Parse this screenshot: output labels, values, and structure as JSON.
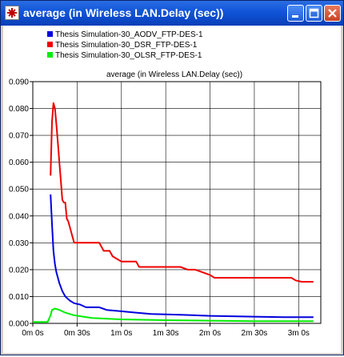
{
  "window": {
    "title": "average (in Wireless LAN.Delay (sec))",
    "icons": [
      "app-icon",
      "minimize-icon",
      "maximize-icon",
      "close-icon"
    ]
  },
  "chart_data": {
    "type": "line",
    "title": "average (in Wireless LAN.Delay (sec))",
    "xlabel": "",
    "ylabel": "",
    "x_unit": "seconds",
    "xlim": [
      0,
      195
    ],
    "ylim": [
      0,
      0.09
    ],
    "grid": true,
    "legend_position": "top-left",
    "x_ticks": [
      0,
      30,
      60,
      90,
      120,
      150,
      180
    ],
    "x_tick_labels": [
      "0m 0s",
      "0m 30s",
      "1m 0s",
      "1m 30s",
      "2m 0s",
      "2m 30s",
      "3m 0s"
    ],
    "y_ticks": [
      0,
      0.01,
      0.02,
      0.03,
      0.04,
      0.05,
      0.06,
      0.07,
      0.08,
      0.09
    ],
    "y_tick_labels": [
      "0.000",
      "0.010",
      "0.020",
      "0.030",
      "0.040",
      "0.050",
      "0.060",
      "0.070",
      "0.080",
      "0.090"
    ],
    "series": [
      {
        "name": "Thesis Simulation-30_AODV_FTP-DES-1",
        "color": "#0000dd",
        "points": [
          [
            12,
            0.048
          ],
          [
            13,
            0.037
          ],
          [
            14,
            0.027
          ],
          [
            15,
            0.022
          ],
          [
            16,
            0.019
          ],
          [
            18,
            0.015
          ],
          [
            20,
            0.012
          ],
          [
            22,
            0.01
          ],
          [
            25,
            0.0085
          ],
          [
            28,
            0.0075
          ],
          [
            32,
            0.007
          ],
          [
            36,
            0.006
          ],
          [
            45,
            0.006
          ],
          [
            50,
            0.005
          ],
          [
            60,
            0.0045
          ],
          [
            70,
            0.004
          ],
          [
            80,
            0.0035
          ],
          [
            100,
            0.0032
          ],
          [
            110,
            0.003
          ],
          [
            120,
            0.0028
          ],
          [
            150,
            0.0025
          ],
          [
            170,
            0.0023
          ],
          [
            190,
            0.0023
          ]
        ]
      },
      {
        "name": "Thesis Simulation-30_DSR_FTP-DES-1",
        "color": "#ee0000",
        "points": [
          [
            12,
            0.055
          ],
          [
            13,
            0.075
          ],
          [
            14,
            0.082
          ],
          [
            15,
            0.08
          ],
          [
            16,
            0.074
          ],
          [
            17,
            0.067
          ],
          [
            18,
            0.06
          ],
          [
            19,
            0.053
          ],
          [
            20,
            0.046
          ],
          [
            21,
            0.045
          ],
          [
            22,
            0.045
          ],
          [
            23,
            0.039
          ],
          [
            24,
            0.038
          ],
          [
            26,
            0.034
          ],
          [
            28,
            0.03
          ],
          [
            45,
            0.03
          ],
          [
            48,
            0.027
          ],
          [
            52,
            0.027
          ],
          [
            54,
            0.025
          ],
          [
            57,
            0.024
          ],
          [
            60,
            0.023
          ],
          [
            70,
            0.023
          ],
          [
            72,
            0.021
          ],
          [
            100,
            0.021
          ],
          [
            105,
            0.02
          ],
          [
            110,
            0.02
          ],
          [
            115,
            0.019
          ],
          [
            120,
            0.018
          ],
          [
            123,
            0.017
          ],
          [
            175,
            0.017
          ],
          [
            178,
            0.016
          ],
          [
            182,
            0.0155
          ],
          [
            190,
            0.0155
          ]
        ]
      },
      {
        "name": "Thesis Simulation-30_OLSR_FTP-DES-1",
        "color": "#00ee00",
        "points": [
          [
            0,
            0.0005
          ],
          [
            10,
            0.0005
          ],
          [
            12,
            0.003
          ],
          [
            13,
            0.005
          ],
          [
            15,
            0.0055
          ],
          [
            18,
            0.005
          ],
          [
            22,
            0.004
          ],
          [
            28,
            0.003
          ],
          [
            40,
            0.002
          ],
          [
            60,
            0.0015
          ],
          [
            90,
            0.0012
          ],
          [
            120,
            0.001
          ],
          [
            150,
            0.0008
          ],
          [
            190,
            0.0008
          ]
        ]
      }
    ]
  }
}
